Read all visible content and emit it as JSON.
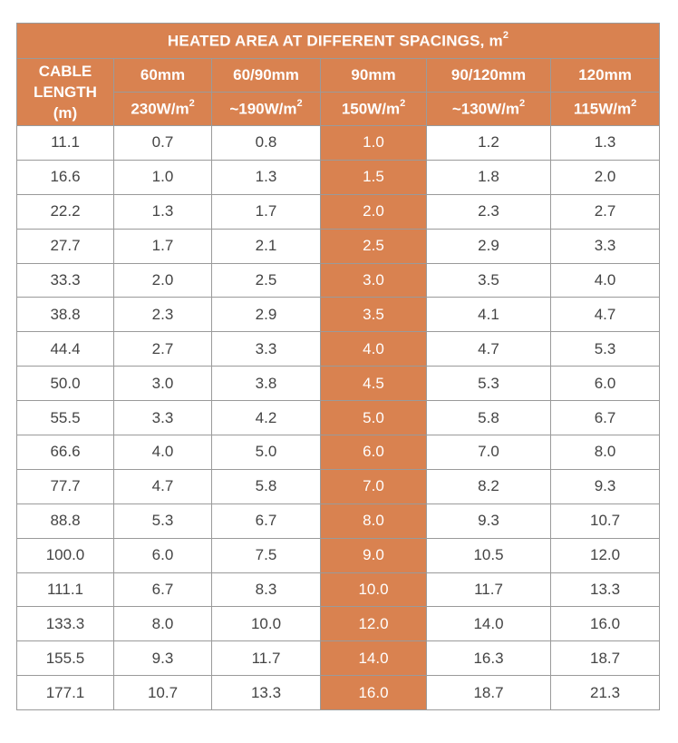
{
  "title": "HEATED AREA AT DIFFERENT SPACINGS, m",
  "title_sup": "2",
  "cable_header": [
    "CABLE",
    "LENGTH",
    "(m)"
  ],
  "columns": [
    {
      "spacing": "60mm",
      "power": "230W/m",
      "sup": "2"
    },
    {
      "spacing": "60/90mm",
      "power": "~190W/m",
      "sup": "2"
    },
    {
      "spacing": "90mm",
      "power": "150W/m",
      "sup": "2"
    },
    {
      "spacing": "90/120mm",
      "power": "~130W/m",
      "sup": "2"
    },
    {
      "spacing": "120mm",
      "power": "115W/m",
      "sup": "2"
    }
  ],
  "accent_color": "#d98250",
  "rows": [
    [
      "11.1",
      "0.7",
      "0.8",
      "1.0",
      "1.2",
      "1.3"
    ],
    [
      "16.6",
      "1.0",
      "1.3",
      "1.5",
      "1.8",
      "2.0"
    ],
    [
      "22.2",
      "1.3",
      "1.7",
      "2.0",
      "2.3",
      "2.7"
    ],
    [
      "27.7",
      "1.7",
      "2.1",
      "2.5",
      "2.9",
      "3.3"
    ],
    [
      "33.3",
      "2.0",
      "2.5",
      "3.0",
      "3.5",
      "4.0"
    ],
    [
      "38.8",
      "2.3",
      "2.9",
      "3.5",
      "4.1",
      "4.7"
    ],
    [
      "44.4",
      "2.7",
      "3.3",
      "4.0",
      "4.7",
      "5.3"
    ],
    [
      "50.0",
      "3.0",
      "3.8",
      "4.5",
      "5.3",
      "6.0"
    ],
    [
      "55.5",
      "3.3",
      "4.2",
      "5.0",
      "5.8",
      "6.7"
    ],
    [
      "66.6",
      "4.0",
      "5.0",
      "6.0",
      "7.0",
      "8.0"
    ],
    [
      "77.7",
      "4.7",
      "5.8",
      "7.0",
      "8.2",
      "9.3"
    ],
    [
      "88.8",
      "5.3",
      "6.7",
      "8.0",
      "9.3",
      "10.7"
    ],
    [
      "100.0",
      "6.0",
      "7.5",
      "9.0",
      "10.5",
      "12.0"
    ],
    [
      "111.1",
      "6.7",
      "8.3",
      "10.0",
      "11.7",
      "13.3"
    ],
    [
      "133.3",
      "8.0",
      "10.0",
      "12.0",
      "14.0",
      "16.0"
    ],
    [
      "155.5",
      "9.3",
      "11.7",
      "14.0",
      "16.3",
      "18.7"
    ],
    [
      "177.1",
      "10.7",
      "13.3",
      "16.0",
      "18.7",
      "21.3"
    ]
  ]
}
